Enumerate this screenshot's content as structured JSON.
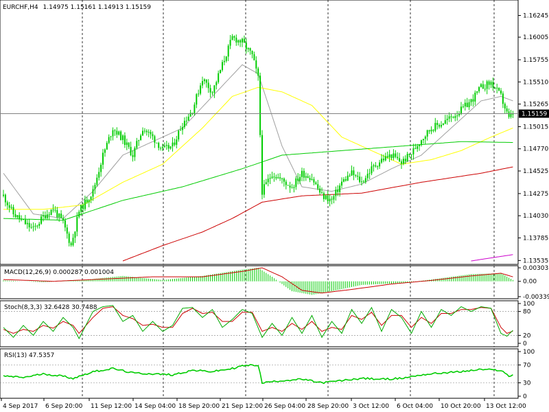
{
  "header": {
    "symbol": "EURCHF,H4",
    "ohlc": "1.14975 1.15161 1.14913 1.15159"
  },
  "chart_data": [
    {
      "type": "candlestick",
      "title": "EURCHF,H4 1.14975 1.15161 1.14913 1.15159",
      "current_price": 1.15159,
      "ylim": [
        1.1353,
        1.1634
      ],
      "y_ticks": [
        "1.16245",
        "1.16005",
        "1.15755",
        "1.15510",
        "1.15265",
        "1.15015",
        "1.14770",
        "1.14525",
        "1.14275",
        "1.14030",
        "1.13785",
        "1.13535"
      ],
      "x_tick_labels": [
        "4 Sep 2017",
        "6 Sep 20:00",
        "11 Sep 12:00",
        "14 Sep 04:00",
        "18 Sep 20:00",
        "21 Sep 12:00",
        "26 Sep 04:00",
        "28 Sep 20:00",
        "3 Oct 12:00",
        "6 Oct 04:00",
        "10 Oct 20:00",
        "13 Oct 12:00"
      ],
      "price_path": [
        [
          0,
          1.1425
        ],
        [
          5,
          1.1405
        ],
        [
          10,
          1.1396
        ],
        [
          15,
          1.1388
        ],
        [
          20,
          1.1402
        ],
        [
          25,
          1.1411
        ],
        [
          30,
          1.1395
        ],
        [
          34,
          1.137
        ],
        [
          38,
          1.1408
        ],
        [
          45,
          1.143
        ],
        [
          50,
          1.147
        ],
        [
          55,
          1.15
        ],
        [
          60,
          1.1488
        ],
        [
          65,
          1.147
        ],
        [
          70,
          1.15
        ],
        [
          75,
          1.149
        ],
        [
          80,
          1.1476
        ],
        [
          85,
          1.148
        ],
        [
          90,
          1.1505
        ],
        [
          95,
          1.152
        ],
        [
          100,
          1.1555
        ],
        [
          105,
          1.154
        ],
        [
          110,
          1.157
        ],
        [
          115,
          1.16
        ],
        [
          120,
          1.1595
        ],
        [
          125,
          1.158
        ],
        [
          128,
          1.1555
        ],
        [
          130,
          1.143
        ],
        [
          135,
          1.145
        ],
        [
          140,
          1.1442
        ],
        [
          145,
          1.1435
        ],
        [
          150,
          1.145
        ],
        [
          155,
          1.1445
        ],
        [
          160,
          1.1425
        ],
        [
          165,
          1.142
        ],
        [
          170,
          1.144
        ],
        [
          175,
          1.145
        ],
        [
          180,
          1.144
        ],
        [
          185,
          1.1455
        ],
        [
          190,
          1.1465
        ],
        [
          195,
          1.147
        ],
        [
          200,
          1.1462
        ],
        [
          205,
          1.1472
        ],
        [
          210,
          1.1488
        ],
        [
          215,
          1.15
        ],
        [
          220,
          1.1505
        ],
        [
          225,
          1.1512
        ],
        [
          230,
          1.152
        ],
        [
          235,
          1.153
        ],
        [
          240,
          1.1545
        ],
        [
          245,
          1.155
        ],
        [
          250,
          1.1535
        ],
        [
          254,
          1.151
        ],
        [
          256,
          1.1516
        ]
      ],
      "moving_averages": [
        {
          "color": "#a0a0a0",
          "points": [
            [
              0,
              1.145
            ],
            [
              15,
              1.1405
            ],
            [
              30,
              1.14
            ],
            [
              45,
              1.143
            ],
            [
              60,
              1.147
            ],
            [
              75,
              1.1485
            ],
            [
              90,
              1.15
            ],
            [
              105,
              1.1535
            ],
            [
              120,
              1.157
            ],
            [
              128,
              1.156
            ],
            [
              140,
              1.148
            ],
            [
              150,
              1.1435
            ],
            [
              165,
              1.143
            ],
            [
              180,
              1.1438
            ],
            [
              195,
              1.1455
            ],
            [
              210,
              1.147
            ],
            [
              225,
              1.15
            ],
            [
              240,
              1.153
            ],
            [
              250,
              1.1535
            ],
            [
              256,
              1.153
            ]
          ]
        },
        {
          "color": "#ffff00",
          "points": [
            [
              0,
              1.141
            ],
            [
              20,
              1.141
            ],
            [
              40,
              1.1415
            ],
            [
              60,
              1.144
            ],
            [
              80,
              1.146
            ],
            [
              100,
              1.15
            ],
            [
              115,
              1.1535
            ],
            [
              128,
              1.1545
            ],
            [
              140,
              1.154
            ],
            [
              155,
              1.1525
            ],
            [
              170,
              1.149
            ],
            [
              185,
              1.1475
            ],
            [
              200,
              1.146
            ],
            [
              215,
              1.1465
            ],
            [
              230,
              1.1475
            ],
            [
              245,
              1.149
            ],
            [
              256,
              1.15
            ]
          ]
        },
        {
          "color": "#00cc00",
          "points": [
            [
              0,
              1.14
            ],
            [
              30,
              1.1398
            ],
            [
              60,
              1.142
            ],
            [
              90,
              1.1435
            ],
            [
              120,
              1.1455
            ],
            [
              140,
              1.147
            ],
            [
              170,
              1.1475
            ],
            [
              200,
              1.148
            ],
            [
              230,
              1.1485
            ],
            [
              256,
              1.1484
            ]
          ]
        },
        {
          "color": "#cc0000",
          "points": [
            [
              60,
              1.1353
            ],
            [
              80,
              1.137
            ],
            [
              100,
              1.1385
            ],
            [
              115,
              1.14
            ],
            [
              130,
              1.1418
            ],
            [
              150,
              1.1425
            ],
            [
              180,
              1.1428
            ],
            [
              210,
              1.144
            ],
            [
              240,
              1.145
            ],
            [
              256,
              1.1457
            ]
          ]
        },
        {
          "color": "#cc00cc",
          "points": [
            [
              235,
              1.1353
            ],
            [
              256,
              1.136
            ]
          ]
        }
      ]
    },
    {
      "type": "histogram",
      "title": "MACD(12,26,9) 0.000287 0.001004",
      "ylim": [
        -0.0034,
        0.003
      ],
      "y_ticks": [
        "0.003031",
        "0.00",
        "-0.003391"
      ],
      "macd_path": [
        [
          0,
          0.0002
        ],
        [
          20,
          -0.0002
        ],
        [
          40,
          0.0003
        ],
        [
          60,
          0.0012
        ],
        [
          80,
          0.0003
        ],
        [
          100,
          0.0012
        ],
        [
          120,
          0.0026
        ],
        [
          128,
          0.003
        ],
        [
          135,
          0.001
        ],
        [
          145,
          -0.0022
        ],
        [
          155,
          -0.003
        ],
        [
          165,
          -0.0022
        ],
        [
          180,
          -0.0008
        ],
        [
          200,
          -0.0004
        ],
        [
          215,
          0.0004
        ],
        [
          235,
          0.0016
        ],
        [
          250,
          0.0018
        ],
        [
          256,
          0.0003
        ]
      ],
      "signal_path": [
        [
          0,
          0.0004
        ],
        [
          25,
          0.0
        ],
        [
          50,
          0.0005
        ],
        [
          75,
          0.001
        ],
        [
          100,
          0.001
        ],
        [
          120,
          0.0022
        ],
        [
          130,
          0.003
        ],
        [
          140,
          0.001
        ],
        [
          150,
          -0.002
        ],
        [
          160,
          -0.0026
        ],
        [
          175,
          -0.0018
        ],
        [
          195,
          -0.0006
        ],
        [
          215,
          0.0002
        ],
        [
          235,
          0.0012
        ],
        [
          250,
          0.0018
        ],
        [
          256,
          0.001
        ]
      ]
    },
    {
      "type": "line",
      "title": "Stoch(8,3,3) 32.6428 30.7488",
      "ylim": [
        0,
        100
      ],
      "y_ticks": [
        "100",
        "80",
        "20",
        "0"
      ],
      "k_path": [
        [
          0,
          40
        ],
        [
          5,
          15
        ],
        [
          10,
          45
        ],
        [
          15,
          20
        ],
        [
          20,
          55
        ],
        [
          25,
          30
        ],
        [
          30,
          65
        ],
        [
          35,
          40
        ],
        [
          38,
          12
        ],
        [
          45,
          80
        ],
        [
          50,
          92
        ],
        [
          55,
          95
        ],
        [
          60,
          55
        ],
        [
          65,
          70
        ],
        [
          70,
          30
        ],
        [
          75,
          55
        ],
        [
          80,
          30
        ],
        [
          85,
          45
        ],
        [
          90,
          88
        ],
        [
          95,
          90
        ],
        [
          100,
          65
        ],
        [
          105,
          85
        ],
        [
          110,
          40
        ],
        [
          115,
          60
        ],
        [
          120,
          85
        ],
        [
          125,
          75
        ],
        [
          130,
          15
        ],
        [
          135,
          50
        ],
        [
          140,
          20
        ],
        [
          145,
          65
        ],
        [
          150,
          25
        ],
        [
          155,
          70
        ],
        [
          160,
          15
        ],
        [
          165,
          55
        ],
        [
          170,
          25
        ],
        [
          175,
          85
        ],
        [
          180,
          50
        ],
        [
          185,
          90
        ],
        [
          190,
          30
        ],
        [
          195,
          85
        ],
        [
          200,
          65
        ],
        [
          205,
          25
        ],
        [
          210,
          80
        ],
        [
          215,
          40
        ],
        [
          220,
          85
        ],
        [
          225,
          70
        ],
        [
          230,
          92
        ],
        [
          235,
          80
        ],
        [
          240,
          92
        ],
        [
          245,
          88
        ],
        [
          250,
          25
        ],
        [
          253,
          18
        ],
        [
          256,
          32.6428
        ]
      ],
      "d_path": [
        [
          0,
          35
        ],
        [
          5,
          25
        ],
        [
          10,
          35
        ],
        [
          15,
          30
        ],
        [
          20,
          45
        ],
        [
          25,
          38
        ],
        [
          30,
          55
        ],
        [
          35,
          45
        ],
        [
          38,
          25
        ],
        [
          45,
          65
        ],
        [
          50,
          88
        ],
        [
          55,
          92
        ],
        [
          60,
          70
        ],
        [
          65,
          62
        ],
        [
          70,
          45
        ],
        [
          75,
          48
        ],
        [
          80,
          40
        ],
        [
          85,
          40
        ],
        [
          90,
          75
        ],
        [
          95,
          88
        ],
        [
          100,
          75
        ],
        [
          105,
          78
        ],
        [
          110,
          55
        ],
        [
          115,
          55
        ],
        [
          120,
          78
        ],
        [
          125,
          78
        ],
        [
          130,
          30
        ],
        [
          135,
          40
        ],
        [
          140,
          30
        ],
        [
          145,
          50
        ],
        [
          150,
          35
        ],
        [
          155,
          55
        ],
        [
          160,
          30
        ],
        [
          165,
          40
        ],
        [
          170,
          35
        ],
        [
          175,
          70
        ],
        [
          180,
          60
        ],
        [
          185,
          78
        ],
        [
          190,
          45
        ],
        [
          195,
          70
        ],
        [
          200,
          70
        ],
        [
          205,
          40
        ],
        [
          210,
          65
        ],
        [
          215,
          50
        ],
        [
          220,
          75
        ],
        [
          225,
          75
        ],
        [
          230,
          85
        ],
        [
          235,
          85
        ],
        [
          240,
          90
        ],
        [
          245,
          88
        ],
        [
          250,
          40
        ],
        [
          253,
          25
        ],
        [
          256,
          30.7488
        ]
      ]
    },
    {
      "type": "line",
      "title": "RSI(13) 47.5357",
      "ylim": [
        0,
        100
      ],
      "y_ticks": [
        "100",
        "70",
        "30",
        "0"
      ],
      "rsi_path": [
        [
          0,
          45
        ],
        [
          10,
          42
        ],
        [
          20,
          50
        ],
        [
          30,
          45
        ],
        [
          35,
          40
        ],
        [
          45,
          55
        ],
        [
          55,
          62
        ],
        [
          65,
          52
        ],
        [
          75,
          50
        ],
        [
          85,
          48
        ],
        [
          95,
          58
        ],
        [
          105,
          55
        ],
        [
          115,
          62
        ],
        [
          120,
          68
        ],
        [
          128,
          70
        ],
        [
          130,
          30
        ],
        [
          140,
          35
        ],
        [
          150,
          38
        ],
        [
          160,
          30
        ],
        [
          170,
          35
        ],
        [
          180,
          40
        ],
        [
          190,
          38
        ],
        [
          200,
          40
        ],
        [
          210,
          48
        ],
        [
          220,
          52
        ],
        [
          230,
          55
        ],
        [
          240,
          60
        ],
        [
          250,
          58
        ],
        [
          254,
          45
        ],
        [
          256,
          47.5357
        ]
      ]
    }
  ],
  "price_tag": "1.15159"
}
